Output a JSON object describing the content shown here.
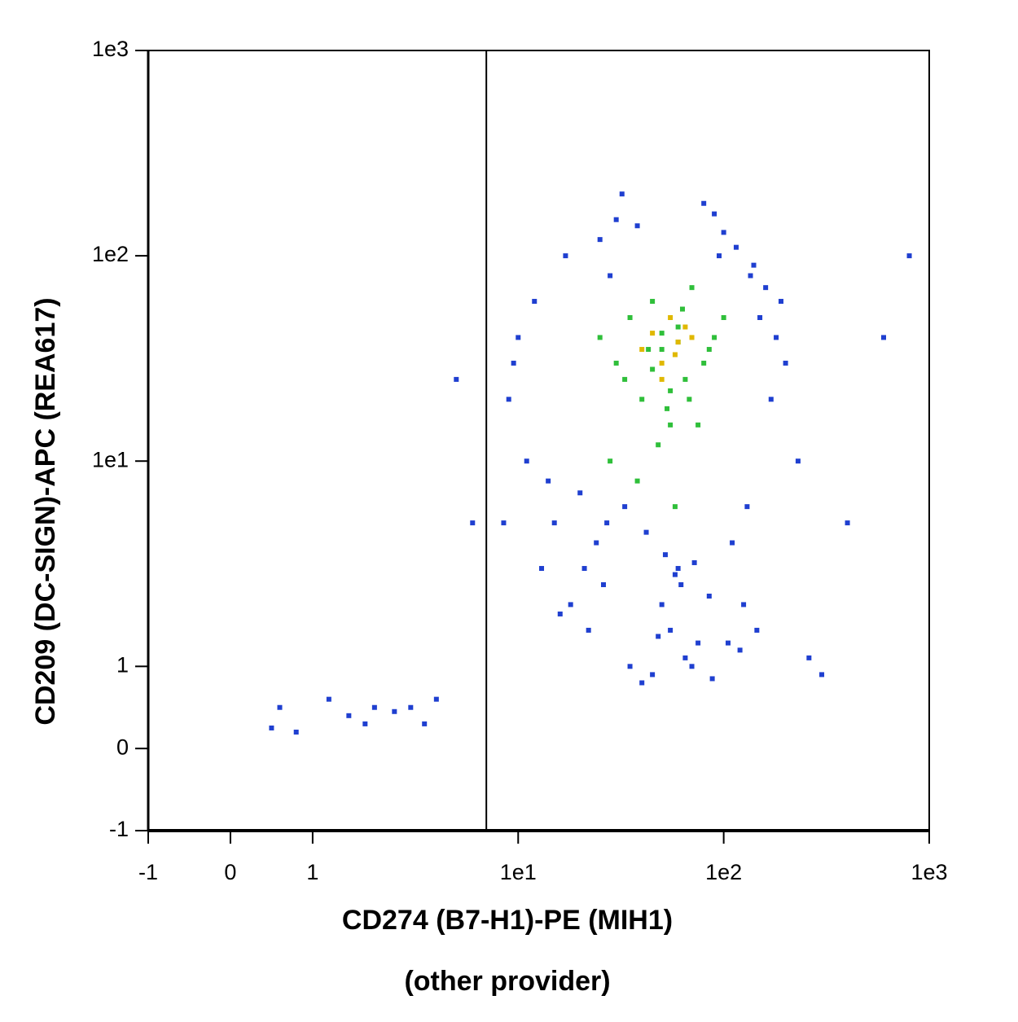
{
  "chart_data": {
    "type": "scatter",
    "xlabel": "CD274 (B7-H1)-PE (MIH1)",
    "xlabel_note": "(other provider)",
    "ylabel": "CD209 (DC-SIGN)-APC (REA617)",
    "scale": "biexponential",
    "xlim": [
      -1,
      1000
    ],
    "ylim": [
      -1,
      1000
    ],
    "xticks": [
      -1,
      0,
      1,
      {
        "value": 10,
        "label": "1e1"
      },
      {
        "value": 100,
        "label": "1e2"
      },
      {
        "value": 1000,
        "label": "1e3"
      }
    ],
    "yticks": [
      -1,
      0,
      1,
      {
        "value": 10,
        "label": "1e1"
      },
      {
        "value": 100,
        "label": "1e2"
      },
      {
        "value": 1000,
        "label": "1e3"
      }
    ],
    "gate_x": 7,
    "series": [
      {
        "color": "#1f3fd0",
        "x": [
          9,
          12,
          15,
          18,
          22,
          25,
          30,
          35,
          40,
          50,
          60,
          70,
          80,
          90,
          100,
          120,
          140,
          160,
          180,
          200,
          11,
          14,
          17,
          21,
          26,
          32,
          45,
          55,
          65,
          85,
          110,
          130,
          150,
          9.5,
          13,
          16,
          24,
          28,
          38,
          48,
          58,
          75,
          95,
          115,
          135,
          170,
          230,
          300,
          8.5,
          10,
          20,
          27,
          33,
          42,
          52,
          62,
          72,
          88,
          105,
          125,
          145,
          190,
          260,
          400,
          600,
          800,
          5,
          4,
          6,
          3.5,
          2,
          1.5,
          0.6,
          0.8,
          1.2,
          2.5,
          0.5,
          1.8,
          3
        ],
        "y": [
          20,
          60,
          5,
          2,
          1.5,
          120,
          150,
          1,
          0.8,
          2,
          3,
          1,
          180,
          160,
          130,
          1.2,
          90,
          70,
          40,
          30,
          10,
          8,
          100,
          3,
          2.5,
          200,
          0.9,
          1.5,
          1.1,
          2.2,
          4,
          6,
          50,
          30,
          3,
          1.8,
          4,
          80,
          140,
          1.4,
          2.8,
          1.3,
          100,
          110,
          80,
          20,
          10,
          0.9,
          5,
          40,
          7,
          5,
          6,
          4.5,
          3.5,
          2.5,
          3.2,
          0.85,
          1.3,
          2,
          1.5,
          60,
          1.1,
          5,
          40,
          100,
          25,
          0.6,
          5,
          0.3,
          0.5,
          0.4,
          0.5,
          0.2,
          0.6,
          0.45,
          0.25,
          0.3,
          0.5
        ]
      },
      {
        "color": "#2fbf3a",
        "x": [
          25,
          30,
          35,
          40,
          45,
          50,
          55,
          60,
          65,
          70,
          80,
          90,
          100,
          28,
          38,
          48,
          58,
          68,
          33,
          43,
          53,
          63,
          75,
          85,
          45,
          50,
          55,
          60
        ],
        "y": [
          40,
          30,
          50,
          20,
          60,
          35,
          15,
          45,
          25,
          70,
          30,
          40,
          50,
          10,
          8,
          12,
          6,
          20,
          25,
          35,
          18,
          55,
          15,
          35,
          28,
          42,
          22,
          38
        ]
      },
      {
        "color": "#e0b800",
        "x": [
          40,
          45,
          50,
          55,
          60,
          65,
          70,
          50,
          58
        ],
        "y": [
          35,
          42,
          30,
          50,
          38,
          45,
          40,
          25,
          33
        ]
      }
    ]
  }
}
